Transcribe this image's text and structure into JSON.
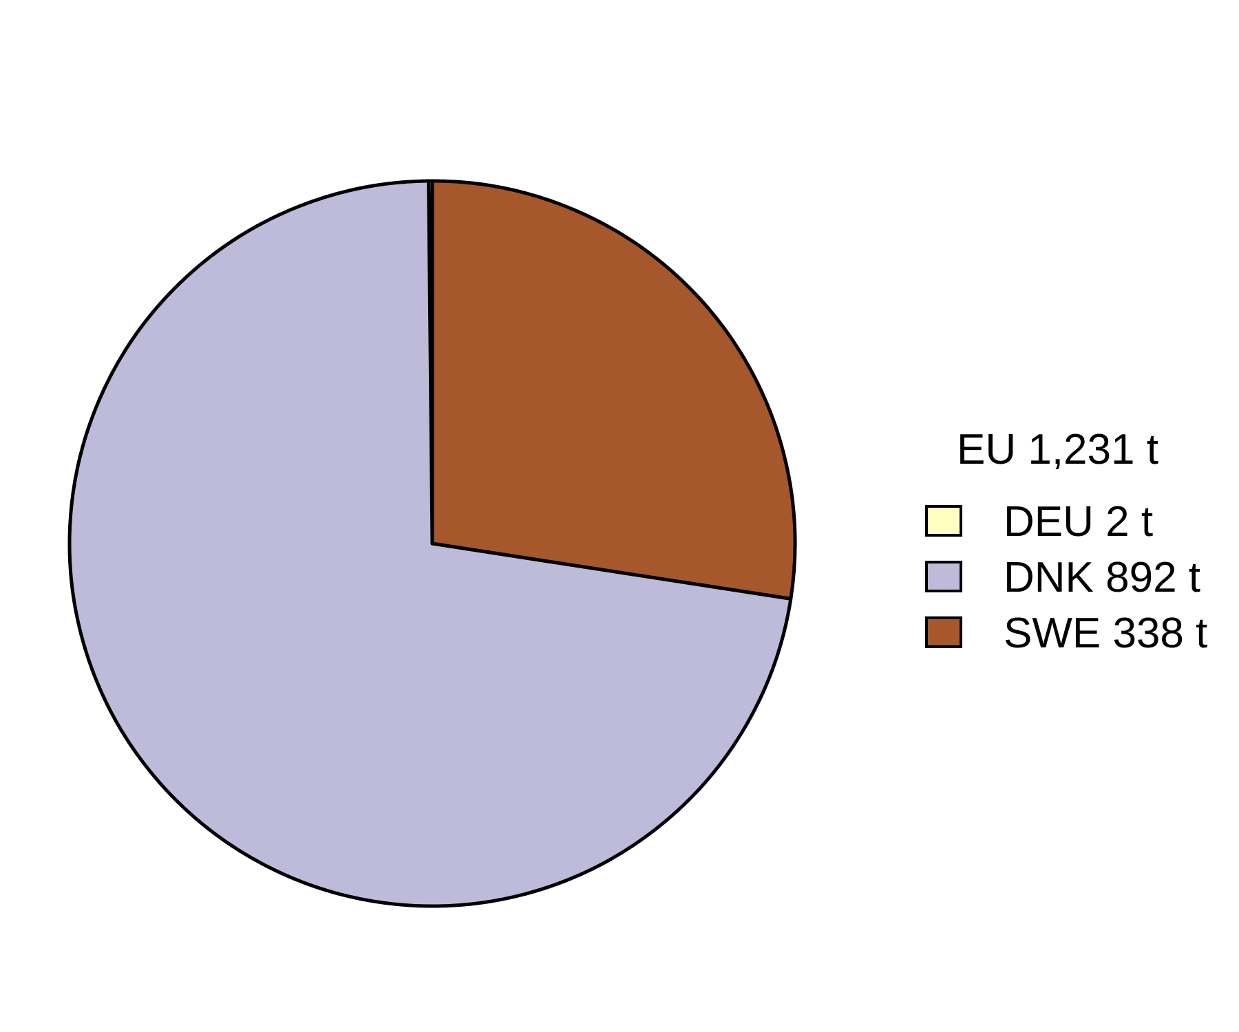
{
  "chart_data": {
    "type": "pie",
    "legend": {
      "title": "EU 1,231 t",
      "placement": "right"
    },
    "slices": [
      {
        "name": "DEU",
        "label": "DEU 2 t",
        "value": 2,
        "color": "#FFFFC0"
      },
      {
        "name": "DNK",
        "label": "DNK 892 t",
        "value": 892,
        "color": "#BEBADA"
      },
      {
        "name": "SWE",
        "label": "SWE 338 t",
        "value": 338,
        "color": "#A6572B"
      }
    ],
    "direction": "counterclockwise",
    "start_angle_deg": 90
  }
}
